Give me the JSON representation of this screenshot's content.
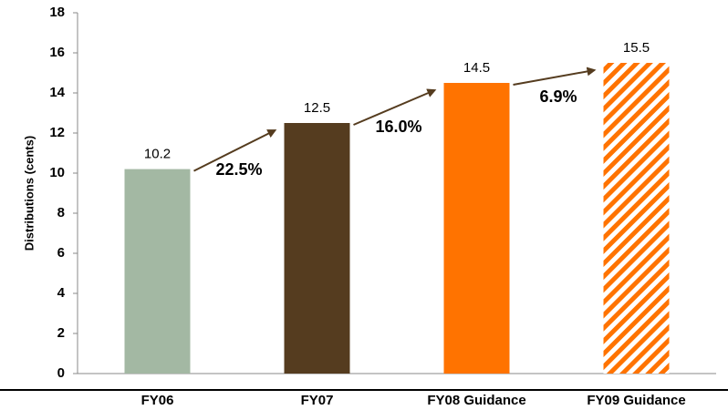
{
  "chart_data": {
    "type": "bar",
    "ylabel": "Distributions (cents)",
    "categories": [
      "FY06",
      "FY07",
      "FY08 Guidance",
      "FY09 Guidance"
    ],
    "values": [
      10.2,
      12.5,
      14.5,
      15.5
    ],
    "colors": [
      "#a3b8a3",
      "#553c1f",
      "#ff7300",
      "#ff7300"
    ],
    "hatch": [
      false,
      false,
      false,
      true
    ],
    "annotations": [
      "22.5%",
      "16.0%",
      "6.9%"
    ],
    "annotation_color": "#553c1f",
    "ylim": [
      0,
      18
    ],
    "yticks": [
      0,
      2,
      4,
      6,
      8,
      10,
      12,
      14,
      16,
      18
    ],
    "grid": false
  }
}
